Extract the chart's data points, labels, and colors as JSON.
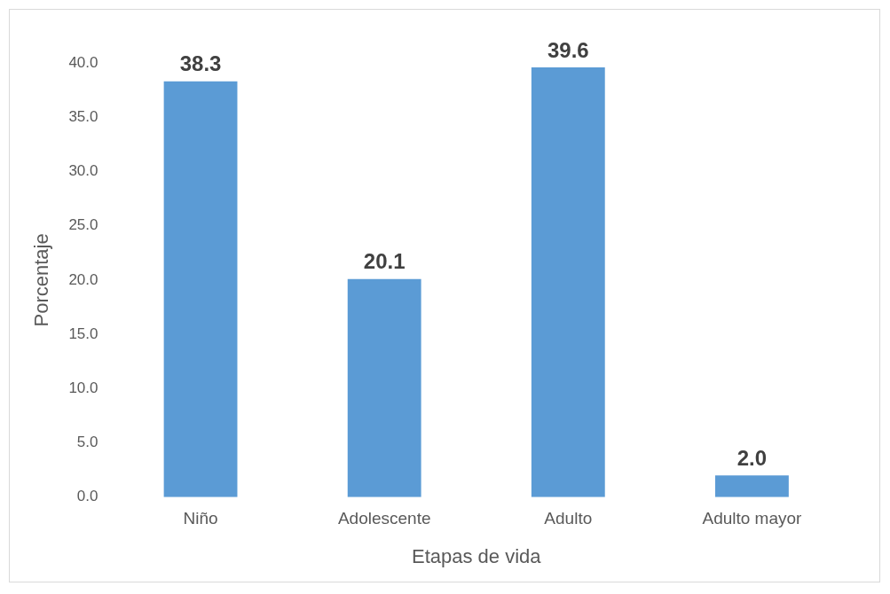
{
  "chart_data": {
    "type": "bar",
    "xlabel": "Etapas de vida",
    "ylabel": "Porcentaje",
    "categories": [
      "Niño",
      "Adolescente",
      "Adulto",
      "Adulto mayor"
    ],
    "values": [
      38.3,
      20.1,
      39.6,
      2.0
    ],
    "value_labels": [
      "38.3",
      "20.1",
      "39.6",
      "2.0"
    ],
    "color": "#5b9bd5",
    "ylim": [
      0,
      40
    ],
    "yticks": [
      {
        "value": 0,
        "label": "0.0"
      },
      {
        "value": 5,
        "label": "5.0"
      },
      {
        "value": 10,
        "label": "10.0"
      },
      {
        "value": 15,
        "label": "15.0"
      },
      {
        "value": 20,
        "label": "20.0"
      },
      {
        "value": 25,
        "label": "25.0"
      },
      {
        "value": 30,
        "label": "30.0"
      },
      {
        "value": 35,
        "label": "35.0"
      },
      {
        "value": 40,
        "label": "40.0"
      }
    ],
    "grid": false,
    "legend": false
  }
}
